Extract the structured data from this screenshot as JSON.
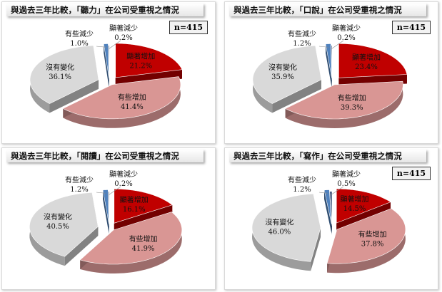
{
  "chart_data": [
    {
      "type": "pie",
      "title": "與過去三年比較，「聽力」在公司受重視之情況",
      "n_label": "n=415",
      "categories": [
        "顯著增加",
        "有些增加",
        "沒有變化",
        "有些減少",
        "顯著減少"
      ],
      "values": [
        21.2,
        41.4,
        36.1,
        1.0,
        0.2
      ],
      "value_labels": [
        "21.2%",
        "41.4%",
        "36.1%",
        "1.0%",
        "0.2%"
      ]
    },
    {
      "type": "pie",
      "title": "與過去三年比較，「口說」在公司受重視之情況",
      "n_label": "n=415",
      "categories": [
        "顯著增加",
        "有些增加",
        "沒有變化",
        "有些減少",
        "顯著減少"
      ],
      "values": [
        23.4,
        39.3,
        35.9,
        1.2,
        0.2
      ],
      "value_labels": [
        "23.4%",
        "39.3%",
        "35.9%",
        "1.2%",
        "0.2%"
      ]
    },
    {
      "type": "pie",
      "title": "與過去三年比較，「閱讀」在公司受重視之情況",
      "n_label": "",
      "categories": [
        "顯著增加",
        "有些增加",
        "沒有變化",
        "有些減少",
        "顯著減少"
      ],
      "values": [
        16.1,
        41.9,
        40.5,
        1.2,
        0.2
      ],
      "value_labels": [
        "16.1%",
        "41.9%",
        "40.5%",
        "1.2%",
        "0.2%"
      ]
    },
    {
      "type": "pie",
      "title": "與過去三年比較，「寫作」在公司受重視之情況",
      "n_label": "n=415",
      "categories": [
        "顯著增加",
        "有些增加",
        "沒有變化",
        "有些減少",
        "顯著減少"
      ],
      "values": [
        14.5,
        37.8,
        46.0,
        1.2,
        0.5
      ],
      "value_labels": [
        "14.5%",
        "37.8%",
        "46.0%",
        "1.2%",
        "0.5%"
      ]
    }
  ],
  "colors": {
    "significant_increase": "#c00000",
    "some_increase": "#d99694",
    "no_change": "#d9d9d9",
    "some_decrease": "#4f81bd",
    "significant_decrease": "#1f3864"
  }
}
